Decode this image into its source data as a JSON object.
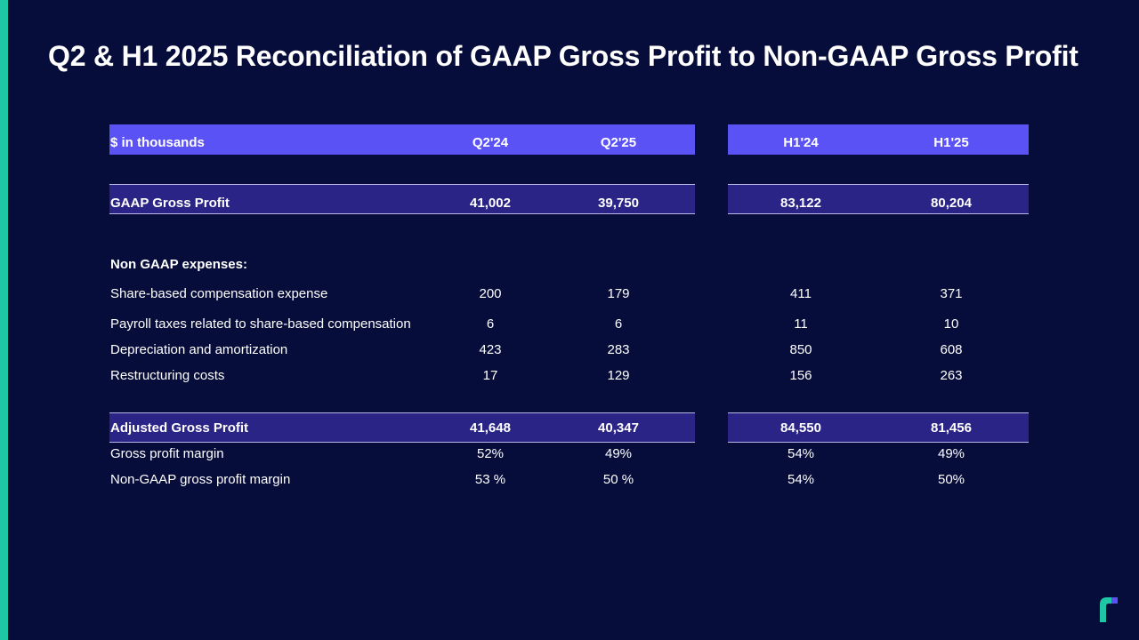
{
  "title": "Q2 & H1  2025 Reconciliation of GAAP Gross Profit to Non-GAAP Gross Profit",
  "colors": {
    "background": "#070d3a",
    "accent": "#1ec6a6",
    "header_band": "#5b52f5",
    "highlight_band": "#2b2487"
  },
  "header": {
    "label": "$ in thousands",
    "cols": [
      "Q2'24",
      "Q2'25",
      "H1'24",
      "H1'25"
    ]
  },
  "gaap": {
    "label": "GAAP Gross Profit",
    "values": [
      "41,002",
      "39,750",
      "83,122",
      "80,204"
    ]
  },
  "section_label": "Non GAAP expenses:",
  "expenses": [
    {
      "label": "Share-based compensation expense",
      "values": [
        "200",
        "179",
        "411",
        "371"
      ]
    },
    {
      "label": "Payroll taxes related to share-based compensation",
      "values": [
        "6",
        "6",
        "11",
        "10"
      ]
    },
    {
      "label": "Depreciation and amortization",
      "values": [
        "423",
        "283",
        "850",
        "608"
      ]
    },
    {
      "label": "Restructuring costs",
      "values": [
        "17",
        "129",
        "156",
        "263"
      ]
    }
  ],
  "adjusted": {
    "label": "Adjusted Gross Profit",
    "values": [
      "41,648",
      "40,347",
      "84,550",
      "81,456"
    ]
  },
  "margins": [
    {
      "label": "Gross profit margin",
      "values": [
        "52%",
        "49%",
        "54%",
        "49%"
      ]
    },
    {
      "label": "Non-GAAP gross profit margin",
      "values": [
        "53 %",
        "50 %",
        "54%",
        "50%"
      ]
    }
  ],
  "logo_icon": "brand-logo-icon"
}
